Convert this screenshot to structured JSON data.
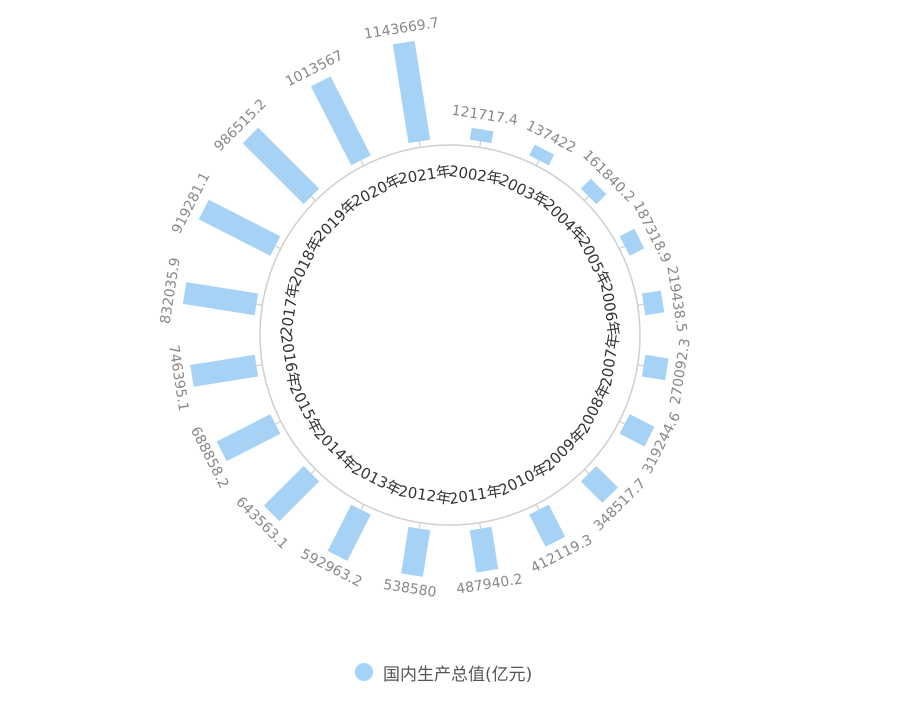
{
  "chart_data": {
    "type": "bar",
    "layout": "polar-radial",
    "categories": [
      "2002年",
      "2003年",
      "2004年",
      "2005年",
      "2006年",
      "2007年",
      "2008年",
      "2009年",
      "2010年",
      "2011年",
      "2012年",
      "2013年",
      "2014年",
      "2015年",
      "2016年",
      "2017年",
      "2018年",
      "2019年",
      "2020年",
      "2021年"
    ],
    "value_labels": [
      "121717.4",
      "137422",
      "161840.2",
      "187318.9",
      "219438.5",
      "270092.3",
      "319244.6",
      "348517.7",
      "412119.3",
      "487940.2",
      "538580",
      "592963.2",
      "643563.1",
      "688858.2",
      "746395.1",
      "832035.9",
      "919281.1",
      "986515.2",
      "1013567",
      "1143669.7"
    ],
    "series": [
      {
        "name": "国内生产总值(亿元)",
        "values": [
          121717.4,
          137422,
          161840.2,
          187318.9,
          219438.5,
          270092.3,
          319244.6,
          348517.7,
          412119.3,
          487940.2,
          538580,
          592963.2,
          643563.1,
          688858.2,
          746395.1,
          832035.9,
          919281.1,
          986515.2,
          1013567,
          1143669.7
        ]
      }
    ],
    "colors": {
      "bar": "#a6d3f5",
      "axis": "#cfcfcf",
      "category_label": "#333333",
      "value_label": "#888888",
      "legend_text": "#555555"
    },
    "legend": {
      "placement": "bottom-center",
      "label": "国内生产总值(亿元)"
    }
  }
}
